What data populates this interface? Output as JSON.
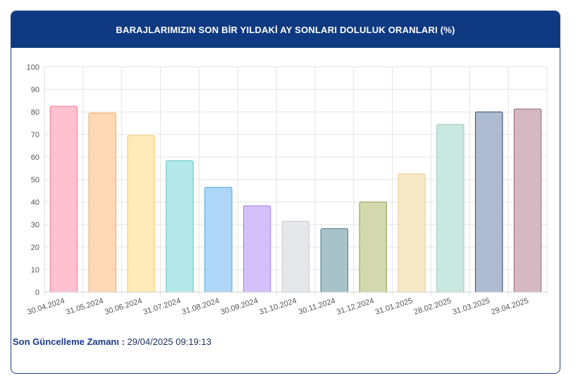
{
  "header": {
    "title": "BARAJLARIMIZIN SON BİR YILDAKİ AY SONLARI DOLULUK ORANLARI (%)"
  },
  "footer": {
    "label": "Son Güncelleme Zamanı :",
    "value": " 29/04/2025 09:19:13"
  },
  "chart_data": {
    "type": "bar",
    "title": "BARAJLARIMIZIN SON BİR YILDAKİ AY SONLARI DOLULUK ORANLARI (%)",
    "categories": [
      "30.04.2024",
      "31.05.2024",
      "30.06.2024",
      "31.07.2024",
      "31.08.2024",
      "30.09.2024",
      "31.10.2024",
      "30.11.2024",
      "31.12.2024",
      "31.01.2025",
      "28.02.2025",
      "31.03.2025",
      "29.04.2025"
    ],
    "values": [
      82.5,
      79.5,
      69.5,
      58.3,
      46.5,
      38.3,
      31.5,
      28.2,
      40.0,
      52.5,
      74.4,
      80.0,
      81.3
    ],
    "ylim": [
      0,
      100
    ],
    "yticks": [
      0,
      10,
      20,
      30,
      40,
      50,
      60,
      70,
      80,
      90,
      100
    ],
    "grid": true,
    "colors": {
      "fills": [
        "#ffc0cf",
        "#ffd9b5",
        "#ffeab9",
        "#b5e8e8",
        "#aed6f6",
        "#d6c0fb",
        "#e6e7ea",
        "#a7c3c9",
        "#d3d9ad",
        "#f7e8c6",
        "#c8e8e0",
        "#aebcd1",
        "#d4b9c2"
      ],
      "strokes": [
        "#f37a9a",
        "#f5a562",
        "#f2cd63",
        "#55c7c7",
        "#45a5e6",
        "#a47bf2",
        "#c9cbcf",
        "#4b7b85",
        "#8d9a4a",
        "#efca83",
        "#8fcfbf",
        "#2d4770",
        "#9c5e74"
      ]
    }
  }
}
